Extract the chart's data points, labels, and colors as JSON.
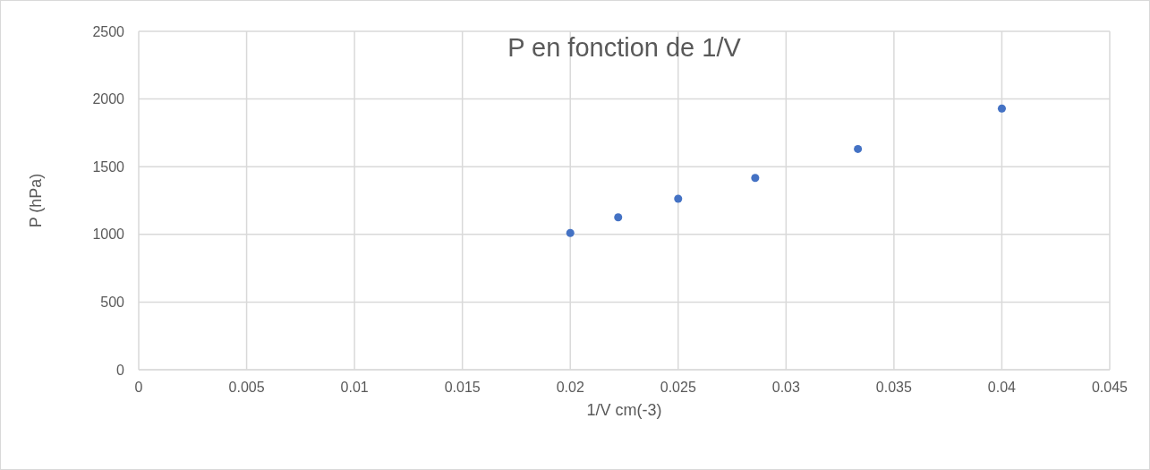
{
  "chart_data": {
    "type": "scatter",
    "title": "P en fonction de 1/V",
    "xlabel": "1/V cm(-3)",
    "ylabel": "P (hPa)",
    "x": [
      0.02,
      0.02222,
      0.025,
      0.02857,
      0.03333,
      0.04
    ],
    "series": [
      {
        "color": "#4472c4",
        "values": [
          1010,
          1126,
          1263,
          1417,
          1631,
          1930
        ]
      }
    ],
    "xlim": [
      0,
      0.045
    ],
    "xticks": [
      0,
      0.005,
      0.01,
      0.015,
      0.02,
      0.025,
      0.03,
      0.035,
      0.04,
      0.045
    ],
    "ylim": [
      0,
      2500
    ],
    "yticks": [
      0,
      500,
      1000,
      1500,
      2000,
      2500
    ],
    "grid": true,
    "marker": "circle"
  }
}
